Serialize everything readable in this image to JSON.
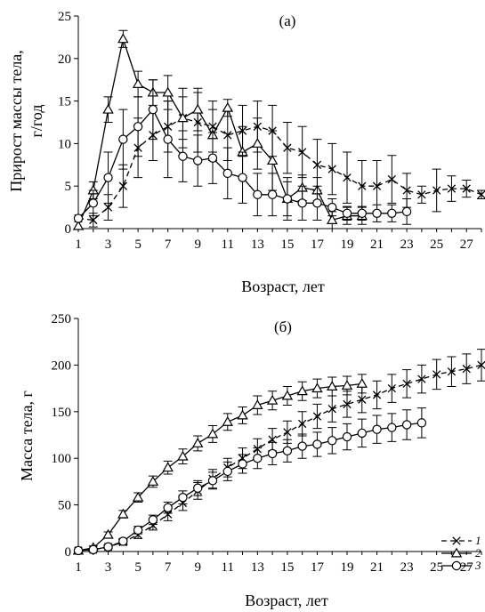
{
  "chart_data": [
    {
      "type": "line",
      "title": "(а)",
      "xlabel": "Возраст, лет",
      "ylabel": "Прирост массы тела, г/год",
      "ylabel_lines": [
        "Прирост массы тела,",
        "г/год"
      ],
      "xlim": [
        1,
        28
      ],
      "ylim": [
        0,
        25
      ],
      "xticks": [
        1,
        3,
        5,
        7,
        9,
        11,
        13,
        15,
        17,
        19,
        21,
        23,
        25,
        27
      ],
      "yticks": [
        0,
        5,
        10,
        15,
        20,
        25
      ],
      "series": [
        {
          "name": "1",
          "marker": "x",
          "dash": true,
          "x": [
            1,
            2,
            3,
            4,
            5,
            6,
            7,
            8,
            9,
            10,
            11,
            12,
            13,
            14,
            15,
            16,
            17,
            18,
            19,
            20,
            21,
            22,
            23,
            24,
            25,
            26,
            27,
            28
          ],
          "y": [
            1.2,
            1.0,
            2.5,
            5.0,
            9.5,
            11.0,
            12.0,
            13.0,
            12.5,
            12.0,
            11.0,
            11.5,
            12.0,
            11.5,
            9.5,
            9.0,
            7.5,
            7.0,
            6.0,
            5.0,
            5.0,
            5.8,
            4.5,
            4.0,
            4.5,
            4.7,
            4.7,
            4.0
          ],
          "err": [
            0,
            0.8,
            1.5,
            2.5,
            3.5,
            3.0,
            3.0,
            3.5,
            3.5,
            3.0,
            3.0,
            3.0,
            3.0,
            3.0,
            3.0,
            3.0,
            3.0,
            3.0,
            3.0,
            3.0,
            3.0,
            2.8,
            2.0,
            1.0,
            2.5,
            1.5,
            1.0,
            0.5
          ]
        },
        {
          "name": "2",
          "marker": "triangle",
          "dash": false,
          "x": [
            1,
            2,
            3,
            4,
            5,
            6,
            7,
            8,
            9,
            10,
            11,
            12,
            13,
            14,
            15,
            16,
            17,
            18,
            19,
            20
          ],
          "y": [
            0.3,
            4.5,
            14.0,
            22.3,
            17.0,
            16.0,
            16.0,
            13.0,
            14.0,
            11.0,
            14.2,
            9.0,
            10.0,
            8.0,
            3.5,
            4.8,
            4.5,
            1.0,
            1.5,
            1.5
          ],
          "err": [
            0,
            1.0,
            1.5,
            1.0,
            1.5,
            1.5,
            2.0,
            2.5,
            2.5,
            3.0,
            1.0,
            3.0,
            3.0,
            3.5,
            2.5,
            1.5,
            1.5,
            1.0,
            1.0,
            1.0
          ]
        },
        {
          "name": "3",
          "marker": "circle",
          "dash": false,
          "x": [
            1,
            2,
            3,
            4,
            5,
            6,
            7,
            8,
            9,
            10,
            11,
            12,
            13,
            14,
            15,
            16,
            17,
            18,
            19,
            20,
            21,
            22,
            23
          ],
          "y": [
            1.2,
            3.0,
            6.0,
            10.5,
            12.0,
            14.0,
            10.5,
            8.5,
            8.0,
            8.3,
            6.5,
            6.0,
            4.0,
            4.0,
            3.5,
            3.0,
            3.0,
            2.5,
            1.8,
            1.8,
            1.8,
            1.8,
            2.0
          ],
          "err": [
            0,
            1.5,
            3.0,
            3.5,
            3.5,
            3.5,
            4.5,
            3.0,
            3.0,
            3.0,
            3.0,
            3.0,
            2.5,
            2.5,
            2.0,
            2.0,
            2.0,
            1.0,
            0.8,
            0.8,
            1.0,
            1.0,
            1.5
          ]
        }
      ]
    },
    {
      "type": "line",
      "title": "(б)",
      "xlabel": "Возраст, лет",
      "ylabel": "Масса тела, г",
      "xlim": [
        1,
        28
      ],
      "ylim": [
        0,
        250
      ],
      "xticks": [
        1,
        3,
        5,
        7,
        9,
        11,
        13,
        15,
        17,
        19,
        21,
        23,
        25,
        27
      ],
      "yticks": [
        0,
        50,
        100,
        150,
        200,
        250
      ],
      "legend": "bottom-right",
      "series": [
        {
          "name": "1",
          "marker": "x",
          "dash": true,
          "x": [
            1,
            2,
            3,
            4,
            5,
            6,
            7,
            8,
            9,
            10,
            11,
            12,
            13,
            14,
            15,
            16,
            17,
            18,
            19,
            20,
            21,
            22,
            23,
            24,
            25,
            26,
            27,
            28
          ],
          "y": [
            1,
            2,
            5,
            10,
            18,
            28,
            40,
            52,
            65,
            78,
            90,
            100,
            110,
            120,
            128,
            137,
            145,
            153,
            158,
            163,
            168,
            175,
            180,
            185,
            190,
            193,
            196,
            200
          ],
          "err": [
            0,
            1,
            2,
            3,
            4,
            5,
            7,
            8,
            9,
            10,
            10,
            11,
            11,
            12,
            12,
            13,
            13,
            14,
            14,
            14,
            15,
            15,
            15,
            15,
            16,
            16,
            16,
            17
          ]
        },
        {
          "name": "2",
          "marker": "triangle",
          "dash": false,
          "x": [
            1,
            2,
            3,
            4,
            5,
            6,
            7,
            8,
            9,
            10,
            11,
            12,
            13,
            14,
            15,
            16,
            17,
            18,
            19,
            20
          ],
          "y": [
            1,
            4,
            18,
            40,
            58,
            75,
            90,
            102,
            116,
            126,
            139,
            146,
            157,
            162,
            167,
            172,
            175,
            177,
            178,
            180
          ],
          "err": [
            0,
            2,
            3,
            4,
            5,
            6,
            7,
            8,
            8,
            9,
            9,
            9,
            10,
            10,
            10,
            10,
            10,
            10,
            10,
            10
          ]
        },
        {
          "name": "3",
          "marker": "circle",
          "dash": false,
          "x": [
            1,
            2,
            3,
            4,
            5,
            6,
            7,
            8,
            9,
            10,
            11,
            12,
            13,
            14,
            15,
            16,
            17,
            18,
            19,
            20,
            21,
            22,
            23,
            24
          ],
          "y": [
            1,
            2,
            5,
            11,
            23,
            34,
            47,
            58,
            68,
            76,
            86,
            94,
            100,
            105,
            108,
            113,
            115,
            119,
            123,
            127,
            131,
            133,
            136,
            138
          ],
          "err": [
            0,
            1,
            2,
            3,
            4,
            5,
            6,
            7,
            8,
            9,
            10,
            10,
            11,
            12,
            12,
            13,
            13,
            14,
            14,
            15,
            15,
            15,
            16,
            16
          ]
        }
      ]
    }
  ]
}
